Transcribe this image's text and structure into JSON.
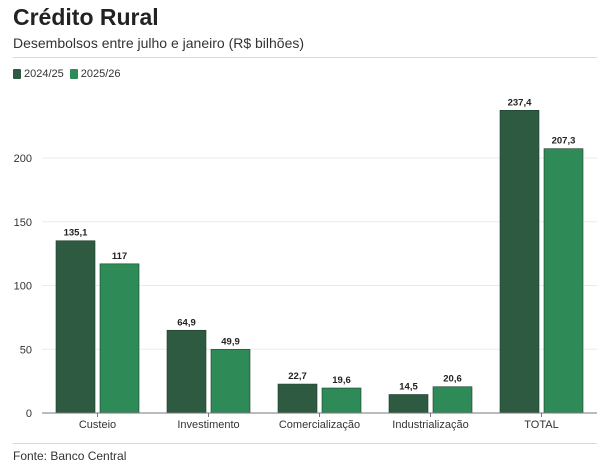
{
  "title": "Crédito Rural",
  "subtitle": "Desembolsos entre julho e janeiro (R$ bilhões)",
  "source": "Fonte: Banco Central",
  "colors": {
    "series_2024_25": "#2d5a41",
    "series_2025_26": "#2e8b57"
  },
  "chart_data": {
    "type": "bar",
    "categories": [
      "Custeio",
      "Investimento",
      "Comercialização",
      "Industrialização",
      "TOTAL"
    ],
    "series": [
      {
        "name": "2024/25",
        "values": [
          135.1,
          64.9,
          22.7,
          14.5,
          237.4
        ],
        "labels": [
          "135,1",
          "64,9",
          "22,7",
          "14,5",
          "237,4"
        ]
      },
      {
        "name": "2025/26",
        "values": [
          117,
          49.9,
          19.6,
          20.6,
          207.3
        ],
        "labels": [
          "117",
          "49,9",
          "19,6",
          "20,6",
          "207,3"
        ]
      }
    ],
    "yticks": [
      0,
      50,
      100,
      150,
      200
    ],
    "ylim": [
      0,
      240
    ],
    "grid": true,
    "legend_position": "top-left"
  }
}
